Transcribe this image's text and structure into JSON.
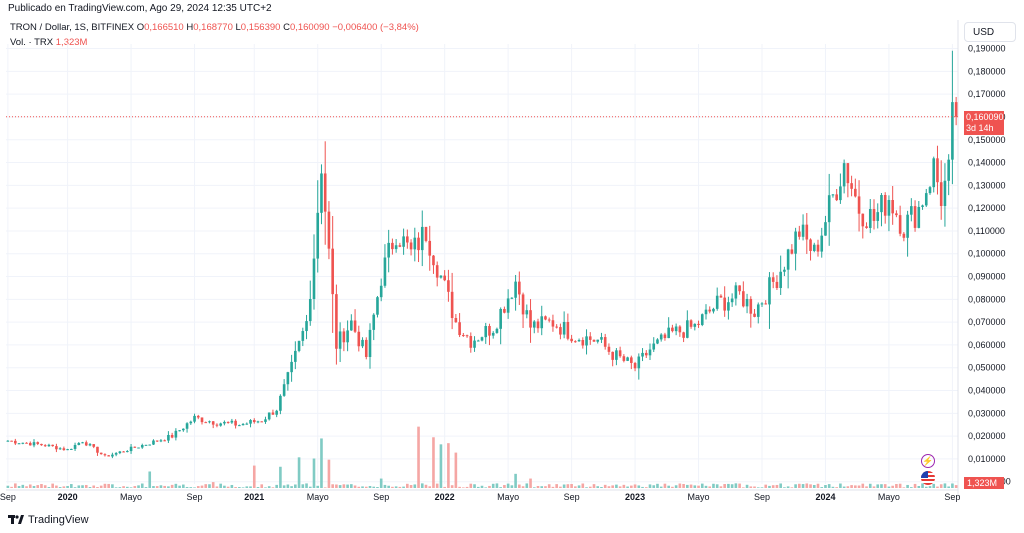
{
  "header": {
    "published": "Publicado en TradingView.com, Ago 29, 2024 12:35 UTC+2"
  },
  "legend": {
    "symbol": "TRON / Dollar, 1S, BITFINEX",
    "o_label": "O",
    "o": "0,166510",
    "h_label": "H",
    "h": "0,168770",
    "l_label": "L",
    "l": "0,156390",
    "c_label": "C",
    "c": "0,160090",
    "change": "−0,006400 (−3,84%)",
    "vol_label": "Vol. · TRX",
    "vol_value": "1,323M"
  },
  "currency_button": "USD",
  "price_tag": {
    "price": "0,160090",
    "countdown": "3d 14h"
  },
  "volume_tag": "1,323M",
  "brand": "TradingView",
  "icons": {
    "flash": "flash-icon",
    "flag": "us-flag-icon"
  },
  "colors": {
    "up": "#26a69a",
    "down": "#ef5350",
    "up_vol": "#80cbc4",
    "down_vol": "#f5a6a4",
    "last_line": "#ef5350"
  },
  "chart_data": {
    "type": "candlestick",
    "title": "TRON / Dollar, 1S, BITFINEX",
    "y_ticks": [
      "0,190000",
      "0,180000",
      "0,170000",
      "0,160000",
      "0,150000",
      "0,140000",
      "0,130000",
      "0,120000",
      "0,110000",
      "0,100000",
      "0,090000",
      "0,080000",
      "0,070000",
      "0,060000",
      "0,050000",
      "0,040000",
      "0,030000",
      "0,020000",
      "0,010000",
      "−0,000000"
    ],
    "y_tick_values": [
      0.19,
      0.18,
      0.17,
      0.16,
      0.15,
      0.14,
      0.13,
      0.12,
      0.11,
      0.1,
      0.09,
      0.08,
      0.07,
      0.06,
      0.05,
      0.04,
      0.03,
      0.02,
      0.01,
      0.0
    ],
    "ylim": [
      -0.001,
      0.192
    ],
    "x_labels": [
      {
        "label": "Sep",
        "bold": false,
        "i": 0
      },
      {
        "label": "2020",
        "bold": true,
        "i": 16
      },
      {
        "label": "Mayo",
        "bold": false,
        "i": 33
      },
      {
        "label": "Sep",
        "bold": false,
        "i": 50
      },
      {
        "label": "2021",
        "bold": true,
        "i": 66
      },
      {
        "label": "Mayo",
        "bold": false,
        "i": 83
      },
      {
        "label": "Sep",
        "bold": false,
        "i": 100
      },
      {
        "label": "2022",
        "bold": true,
        "i": 117
      },
      {
        "label": "Mayo",
        "bold": false,
        "i": 134
      },
      {
        "label": "Sep",
        "bold": false,
        "i": 151
      },
      {
        "label": "2023",
        "bold": true,
        "i": 168
      },
      {
        "label": "Mayo",
        "bold": false,
        "i": 185
      },
      {
        "label": "Sep",
        "bold": false,
        "i": 202
      },
      {
        "label": "2024",
        "bold": true,
        "i": 219
      },
      {
        "label": "Mayo",
        "bold": false,
        "i": 236
      },
      {
        "label": "Sep",
        "bold": false,
        "i": 253
      }
    ],
    "last_price": 0.16009,
    "keypoints": [
      [
        0,
        0.018
      ],
      [
        10,
        0.016
      ],
      [
        16,
        0.014
      ],
      [
        20,
        0.018
      ],
      [
        26,
        0.011
      ],
      [
        34,
        0.015
      ],
      [
        44,
        0.02
      ],
      [
        50,
        0.028
      ],
      [
        56,
        0.026
      ],
      [
        62,
        0.025
      ],
      [
        68,
        0.027
      ],
      [
        72,
        0.032
      ],
      [
        76,
        0.05
      ],
      [
        80,
        0.07
      ],
      [
        82,
        0.1
      ],
      [
        84,
        0.14
      ],
      [
        86,
        0.1
      ],
      [
        88,
        0.06
      ],
      [
        92,
        0.07
      ],
      [
        96,
        0.055
      ],
      [
        100,
        0.09
      ],
      [
        104,
        0.11
      ],
      [
        108,
        0.1
      ],
      [
        112,
        0.11
      ],
      [
        116,
        0.09
      ],
      [
        120,
        0.07
      ],
      [
        124,
        0.062
      ],
      [
        130,
        0.068
      ],
      [
        136,
        0.088
      ],
      [
        140,
        0.068
      ],
      [
        146,
        0.07
      ],
      [
        152,
        0.064
      ],
      [
        158,
        0.062
      ],
      [
        162,
        0.056
      ],
      [
        168,
        0.05
      ],
      [
        172,
        0.058
      ],
      [
        178,
        0.065
      ],
      [
        184,
        0.068
      ],
      [
        190,
        0.078
      ],
      [
        196,
        0.082
      ],
      [
        200,
        0.075
      ],
      [
        206,
        0.09
      ],
      [
        212,
        0.11
      ],
      [
        216,
        0.1
      ],
      [
        220,
        0.12
      ],
      [
        224,
        0.14
      ],
      [
        228,
        0.12
      ],
      [
        232,
        0.115
      ],
      [
        236,
        0.125
      ],
      [
        240,
        0.112
      ],
      [
        244,
        0.12
      ],
      [
        248,
        0.138
      ],
      [
        250,
        0.125
      ],
      [
        252,
        0.135
      ],
      [
        253,
        0.166
      ],
      [
        254,
        0.16009
      ]
    ],
    "volume_spikes": [
      [
        38,
        0.14
      ],
      [
        55,
        0.05
      ],
      [
        66,
        0.19
      ],
      [
        73,
        0.18
      ],
      [
        78,
        0.26
      ],
      [
        82,
        0.25
      ],
      [
        84,
        0.42
      ],
      [
        86,
        0.24
      ],
      [
        100,
        0.08
      ],
      [
        110,
        0.52
      ],
      [
        114,
        0.43
      ],
      [
        116,
        0.37
      ],
      [
        118,
        0.38
      ],
      [
        120,
        0.3
      ],
      [
        136,
        0.12
      ],
      [
        140,
        0.08
      ]
    ]
  }
}
